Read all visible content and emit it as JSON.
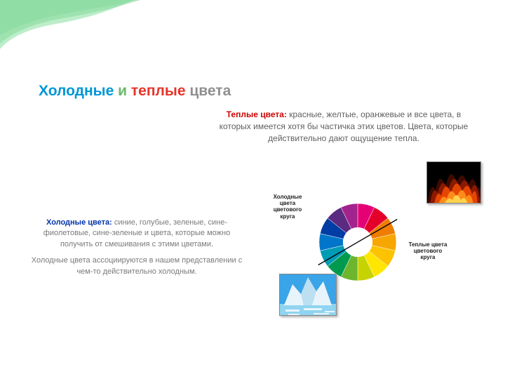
{
  "title": {
    "cold": "Холодные",
    "and": "и",
    "warm": "теплые",
    "word": "цвета",
    "cold_color": "#0096d6",
    "and_color": "#6bb86b",
    "warm_color": "#e63329",
    "word_color": "#8f8f8f"
  },
  "warm_block": {
    "label": "Теплые цвета:",
    "label_color": "#cc0000",
    "text": " красные, желтые, оранжевые и все цвета, в которых имеется хотя бы частичка этих цветов. Цвета, которые действительно дают ощущение тепла."
  },
  "cold_block": {
    "label": "Холодные цвета:",
    "label_color": "#0033aa",
    "text1": " синие, голубые, зеленые, сине-фиолетовые, сине-зеленые и цвета, которые можно получить от смешивания с этими цветами.",
    "text2": "Холодные цвета ассоциируются в нашем представлении с чем-то действительно холодным."
  },
  "color_wheel": {
    "type": "pie",
    "inner_radius_ratio": 0.38,
    "divider_angle_deg": 60,
    "cold_label": "Холодные цвета цветового круга",
    "warm_label": "Теплые цвета цветового круга",
    "segments": [
      {
        "color": "#e50076"
      },
      {
        "color": "#e4002b"
      },
      {
        "color": "#ef7d00"
      },
      {
        "color": "#f7a600"
      },
      {
        "color": "#fdc300"
      },
      {
        "color": "#ffe600"
      },
      {
        "color": "#c7d300"
      },
      {
        "color": "#6cb52d"
      },
      {
        "color": "#009a4e"
      },
      {
        "color": "#009bb4"
      },
      {
        "color": "#0075c9"
      },
      {
        "color": "#003da5"
      },
      {
        "color": "#5b2b82"
      },
      {
        "color": "#a3238e"
      }
    ],
    "label_fontsize": 8
  },
  "fire_image": {
    "type": "infographic",
    "description": "flames",
    "background": "#000000",
    "flame_colors": [
      "#3d0a00",
      "#8a1a00",
      "#e64500",
      "#ff8c1a",
      "#ffd24d"
    ]
  },
  "ice_image": {
    "type": "infographic",
    "description": "iceberg",
    "sky_color": "#3aa4e8",
    "ice_color": "#e8f4fb",
    "ice_shadow": "#8fc9e8",
    "water_color": "#8fd4f0"
  },
  "decoration": {
    "swoosh_colors": [
      "#1fa04a",
      "#2fb85b",
      "#47c96e",
      "#6dd687"
    ]
  }
}
